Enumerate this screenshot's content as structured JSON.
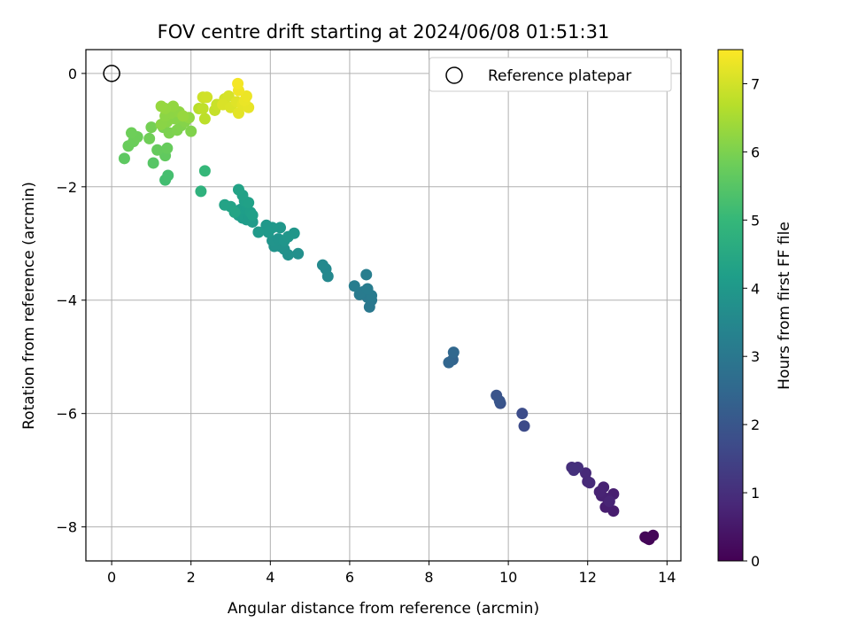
{
  "chart_data": {
    "type": "scatter",
    "title": "FOV centre drift starting at 2024/06/08 01:51:31",
    "xlabel": "Angular distance from reference (arcmin)",
    "ylabel": "Rotation from reference (arcmin)",
    "xlim": [
      -0.65,
      14.35
    ],
    "ylim": [
      -8.6,
      0.42
    ],
    "xticks": [
      0,
      2,
      4,
      6,
      8,
      10,
      12,
      14
    ],
    "xtick_labels": [
      "0",
      "2",
      "4",
      "6",
      "8",
      "10",
      "12",
      "14"
    ],
    "yticks": [
      0,
      -2,
      -4,
      -6,
      -8
    ],
    "ytick_labels": [
      "0",
      "−2",
      "−4",
      "−6",
      "−8"
    ],
    "grid": true,
    "legend": {
      "label": "Reference platepar",
      "placement": "top-right"
    },
    "reference_point": {
      "x": 0,
      "y": 0
    },
    "colorbar": {
      "label": "Hours from first FF file",
      "range": [
        0,
        7.5
      ],
      "ticks": [
        0,
        1,
        2,
        3,
        4,
        5,
        6,
        7
      ],
      "tick_labels": [
        "0",
        "1",
        "2",
        "3",
        "4",
        "5",
        "6",
        "7"
      ],
      "colormap": "viridis"
    },
    "colormap_stops": [
      "#440154",
      "#482878",
      "#3e4a89",
      "#31688e",
      "#26828e",
      "#1f9e89",
      "#35b779",
      "#6ece58",
      "#b5de2b",
      "#fde725"
    ],
    "points": [
      {
        "x": 13.5,
        "y": -8.2,
        "t": 0.05
      },
      {
        "x": 13.55,
        "y": -8.22,
        "t": 0.08
      },
      {
        "x": 13.65,
        "y": -8.15,
        "t": 0.1
      },
      {
        "x": 13.45,
        "y": -8.18,
        "t": 0.12
      },
      {
        "x": 12.65,
        "y": -7.72,
        "t": 0.6
      },
      {
        "x": 12.45,
        "y": -7.65,
        "t": 0.62
      },
      {
        "x": 12.65,
        "y": -7.42,
        "t": 0.65
      },
      {
        "x": 12.5,
        "y": -7.5,
        "t": 0.68
      },
      {
        "x": 12.35,
        "y": -7.45,
        "t": 0.7
      },
      {
        "x": 12.4,
        "y": -7.3,
        "t": 0.72
      },
      {
        "x": 12.3,
        "y": -7.38,
        "t": 0.74
      },
      {
        "x": 12.55,
        "y": -7.55,
        "t": 0.76
      },
      {
        "x": 12.0,
        "y": -7.2,
        "t": 0.85
      },
      {
        "x": 11.95,
        "y": -7.05,
        "t": 0.88
      },
      {
        "x": 12.05,
        "y": -7.22,
        "t": 0.9
      },
      {
        "x": 11.6,
        "y": -6.95,
        "t": 1.0
      },
      {
        "x": 11.75,
        "y": -6.95,
        "t": 1.02
      },
      {
        "x": 11.65,
        "y": -7.0,
        "t": 1.05
      },
      {
        "x": 10.4,
        "y": -6.22,
        "t": 1.7
      },
      {
        "x": 10.35,
        "y": -6.0,
        "t": 1.75
      },
      {
        "x": 9.8,
        "y": -5.82,
        "t": 1.9
      },
      {
        "x": 9.7,
        "y": -5.68,
        "t": 1.95
      },
      {
        "x": 9.78,
        "y": -5.78,
        "t": 1.98
      },
      {
        "x": 8.6,
        "y": -5.05,
        "t": 2.4
      },
      {
        "x": 8.5,
        "y": -5.1,
        "t": 2.45
      },
      {
        "x": 8.62,
        "y": -4.92,
        "t": 2.5
      },
      {
        "x": 6.5,
        "y": -4.12,
        "t": 3.0
      },
      {
        "x": 6.55,
        "y": -4.0,
        "t": 3.02
      },
      {
        "x": 6.45,
        "y": -3.95,
        "t": 3.05
      },
      {
        "x": 6.35,
        "y": -3.85,
        "t": 3.08
      },
      {
        "x": 6.25,
        "y": -3.9,
        "t": 3.1
      },
      {
        "x": 6.55,
        "y": -3.92,
        "t": 3.12
      },
      {
        "x": 6.45,
        "y": -3.8,
        "t": 3.15
      },
      {
        "x": 6.12,
        "y": -3.75,
        "t": 3.18
      },
      {
        "x": 6.42,
        "y": -3.55,
        "t": 3.2
      },
      {
        "x": 5.45,
        "y": -3.58,
        "t": 3.5
      },
      {
        "x": 5.4,
        "y": -3.45,
        "t": 3.52
      },
      {
        "x": 5.32,
        "y": -3.38,
        "t": 3.55
      },
      {
        "x": 4.7,
        "y": -3.18,
        "t": 3.75
      },
      {
        "x": 4.45,
        "y": -3.2,
        "t": 3.78
      },
      {
        "x": 4.35,
        "y": -3.1,
        "t": 3.8
      },
      {
        "x": 4.25,
        "y": -3.05,
        "t": 3.82
      },
      {
        "x": 4.1,
        "y": -3.05,
        "t": 3.84
      },
      {
        "x": 4.05,
        "y": -2.95,
        "t": 3.86
      },
      {
        "x": 4.2,
        "y": -2.92,
        "t": 3.88
      },
      {
        "x": 4.35,
        "y": -2.95,
        "t": 3.9
      },
      {
        "x": 4.45,
        "y": -2.88,
        "t": 3.92
      },
      {
        "x": 4.6,
        "y": -2.82,
        "t": 3.94
      },
      {
        "x": 4.25,
        "y": -2.72,
        "t": 3.96
      },
      {
        "x": 4.05,
        "y": -2.72,
        "t": 3.98
      },
      {
        "x": 3.9,
        "y": -2.68,
        "t": 4.0
      },
      {
        "x": 3.95,
        "y": -2.8,
        "t": 4.02
      },
      {
        "x": 3.7,
        "y": -2.8,
        "t": 4.05
      },
      {
        "x": 3.55,
        "y": -2.62,
        "t": 4.08
      },
      {
        "x": 3.4,
        "y": -2.58,
        "t": 4.1
      },
      {
        "x": 3.3,
        "y": -2.55,
        "t": 4.12
      },
      {
        "x": 3.2,
        "y": -2.5,
        "t": 4.14
      },
      {
        "x": 3.25,
        "y": -2.4,
        "t": 4.16
      },
      {
        "x": 3.4,
        "y": -2.35,
        "t": 4.18
      },
      {
        "x": 3.5,
        "y": -2.45,
        "t": 4.2
      },
      {
        "x": 3.55,
        "y": -2.5,
        "t": 4.22
      },
      {
        "x": 3.35,
        "y": -2.25,
        "t": 4.24
      },
      {
        "x": 3.45,
        "y": -2.28,
        "t": 4.26
      },
      {
        "x": 3.3,
        "y": -2.15,
        "t": 4.28
      },
      {
        "x": 3.2,
        "y": -2.05,
        "t": 4.3
      },
      {
        "x": 3.0,
        "y": -2.35,
        "t": 4.32
      },
      {
        "x": 2.85,
        "y": -2.32,
        "t": 4.34
      },
      {
        "x": 3.1,
        "y": -2.45,
        "t": 4.36
      },
      {
        "x": 2.25,
        "y": -2.08,
        "t": 4.8
      },
      {
        "x": 2.35,
        "y": -1.72,
        "t": 5.0
      },
      {
        "x": 1.35,
        "y": -1.88,
        "t": 5.2
      },
      {
        "x": 1.42,
        "y": -1.8,
        "t": 5.25
      },
      {
        "x": 1.05,
        "y": -1.58,
        "t": 5.5
      },
      {
        "x": 0.32,
        "y": -1.5,
        "t": 5.6
      },
      {
        "x": 1.35,
        "y": -1.45,
        "t": 5.65
      },
      {
        "x": 1.15,
        "y": -1.35,
        "t": 5.7
      },
      {
        "x": 1.4,
        "y": -1.32,
        "t": 5.72
      },
      {
        "x": 0.42,
        "y": -1.28,
        "t": 5.75
      },
      {
        "x": 0.55,
        "y": -1.2,
        "t": 5.78
      },
      {
        "x": 0.65,
        "y": -1.12,
        "t": 5.8
      },
      {
        "x": 0.5,
        "y": -1.05,
        "t": 5.82
      },
      {
        "x": 0.95,
        "y": -1.15,
        "t": 5.85
      },
      {
        "x": 1.0,
        "y": -0.95,
        "t": 5.9
      },
      {
        "x": 1.3,
        "y": -0.95,
        "t": 5.95
      },
      {
        "x": 1.45,
        "y": -1.05,
        "t": 6.0
      },
      {
        "x": 1.65,
        "y": -1.0,
        "t": 6.02
      },
      {
        "x": 1.75,
        "y": -0.92,
        "t": 6.04
      },
      {
        "x": 2.0,
        "y": -1.02,
        "t": 6.06
      },
      {
        "x": 1.85,
        "y": -0.85,
        "t": 6.1
      },
      {
        "x": 1.6,
        "y": -0.8,
        "t": 6.12
      },
      {
        "x": 1.4,
        "y": -0.85,
        "t": 6.14
      },
      {
        "x": 1.25,
        "y": -0.9,
        "t": 6.16
      },
      {
        "x": 1.35,
        "y": -0.75,
        "t": 6.18
      },
      {
        "x": 1.5,
        "y": -0.7,
        "t": 6.2
      },
      {
        "x": 1.7,
        "y": -0.68,
        "t": 6.22
      },
      {
        "x": 1.95,
        "y": -0.78,
        "t": 6.24
      },
      {
        "x": 1.55,
        "y": -0.58,
        "t": 6.26
      },
      {
        "x": 1.35,
        "y": -0.62,
        "t": 6.28
      },
      {
        "x": 1.25,
        "y": -0.58,
        "t": 6.3
      },
      {
        "x": 1.8,
        "y": -0.75,
        "t": 6.32
      },
      {
        "x": 2.2,
        "y": -0.62,
        "t": 6.7
      },
      {
        "x": 2.35,
        "y": -0.8,
        "t": 6.75
      },
      {
        "x": 2.3,
        "y": -0.62,
        "t": 6.78
      },
      {
        "x": 2.6,
        "y": -0.65,
        "t": 6.85
      },
      {
        "x": 2.65,
        "y": -0.55,
        "t": 6.9
      },
      {
        "x": 2.3,
        "y": -0.42,
        "t": 6.95
      },
      {
        "x": 2.4,
        "y": -0.42,
        "t": 6.98
      },
      {
        "x": 2.85,
        "y": -0.45,
        "t": 7.0
      },
      {
        "x": 2.95,
        "y": -0.4,
        "t": 7.05
      },
      {
        "x": 2.8,
        "y": -0.55,
        "t": 7.08
      },
      {
        "x": 3.0,
        "y": -0.6,
        "t": 7.1
      },
      {
        "x": 3.15,
        "y": -0.5,
        "t": 7.15
      },
      {
        "x": 3.2,
        "y": -0.7,
        "t": 7.2
      },
      {
        "x": 3.3,
        "y": -0.55,
        "t": 7.22
      },
      {
        "x": 3.45,
        "y": -0.6,
        "t": 7.25
      },
      {
        "x": 3.35,
        "y": -0.48,
        "t": 7.28
      },
      {
        "x": 3.4,
        "y": -0.4,
        "t": 7.3
      },
      {
        "x": 3.2,
        "y": -0.3,
        "t": 7.35
      },
      {
        "x": 3.18,
        "y": -0.18,
        "t": 7.4
      }
    ]
  }
}
